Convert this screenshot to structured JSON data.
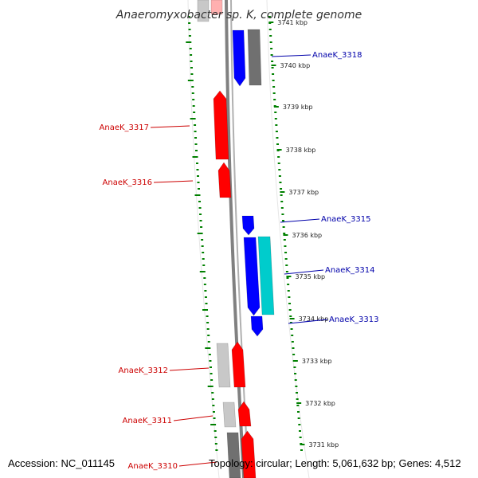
{
  "title": "Anaeromyxobacter sp. K, complete genome",
  "footer": {
    "accession": "Accession: NC_011145",
    "topology": "Topology: circular; Length: 5,061,632 bp; Genes: 4,512"
  },
  "colors": {
    "forward_gene": "#ff0000",
    "reverse_gene": "#0000ff",
    "rna_feature": "#00cccc",
    "gene_grey_dark": "#707070",
    "gene_grey_light": "#c8c8c8",
    "backbone": "#808080",
    "ticks": "#008000",
    "forward_label": "#cc0000",
    "reverse_label": "#0000aa"
  },
  "scale": {
    "ticks": [
      {
        "kbp": 3741,
        "label": "3741 kbp"
      },
      {
        "kbp": 3740,
        "label": "3740 kbp"
      },
      {
        "kbp": 3739,
        "label": "3739 kbp"
      },
      {
        "kbp": 3738,
        "label": "3738 kbp"
      },
      {
        "kbp": 3737,
        "label": "3737 kbp"
      },
      {
        "kbp": 3736,
        "label": "3736 kbp"
      },
      {
        "kbp": 3735,
        "label": "3735 kbp"
      },
      {
        "kbp": 3734,
        "label": "3734 kbp"
      },
      {
        "kbp": 3733,
        "label": "3733 kbp"
      },
      {
        "kbp": 3732,
        "label": "3732 kbp"
      },
      {
        "kbp": 3731,
        "label": "3731 kbp"
      }
    ]
  },
  "genes": [
    {
      "label": "AnaeK_3318",
      "strand": "reverse",
      "kind": "gene"
    },
    {
      "label": "AnaeK_3317",
      "strand": "forward",
      "kind": "gene"
    },
    {
      "label": "AnaeK_3316",
      "strand": "forward",
      "kind": "gene"
    },
    {
      "label": "AnaeK_3315",
      "strand": "reverse",
      "kind": "gene"
    },
    {
      "label": "AnaeK_3314",
      "strand": "reverse",
      "kind": "gene"
    },
    {
      "label": "AnaeK_3313",
      "strand": "reverse",
      "kind": "gene"
    },
    {
      "label": "AnaeK_3312",
      "strand": "forward",
      "kind": "gene"
    },
    {
      "label": "AnaeK_3311",
      "strand": "forward",
      "kind": "gene"
    },
    {
      "label": "AnaeK_3310",
      "strand": "forward",
      "kind": "gene"
    }
  ]
}
